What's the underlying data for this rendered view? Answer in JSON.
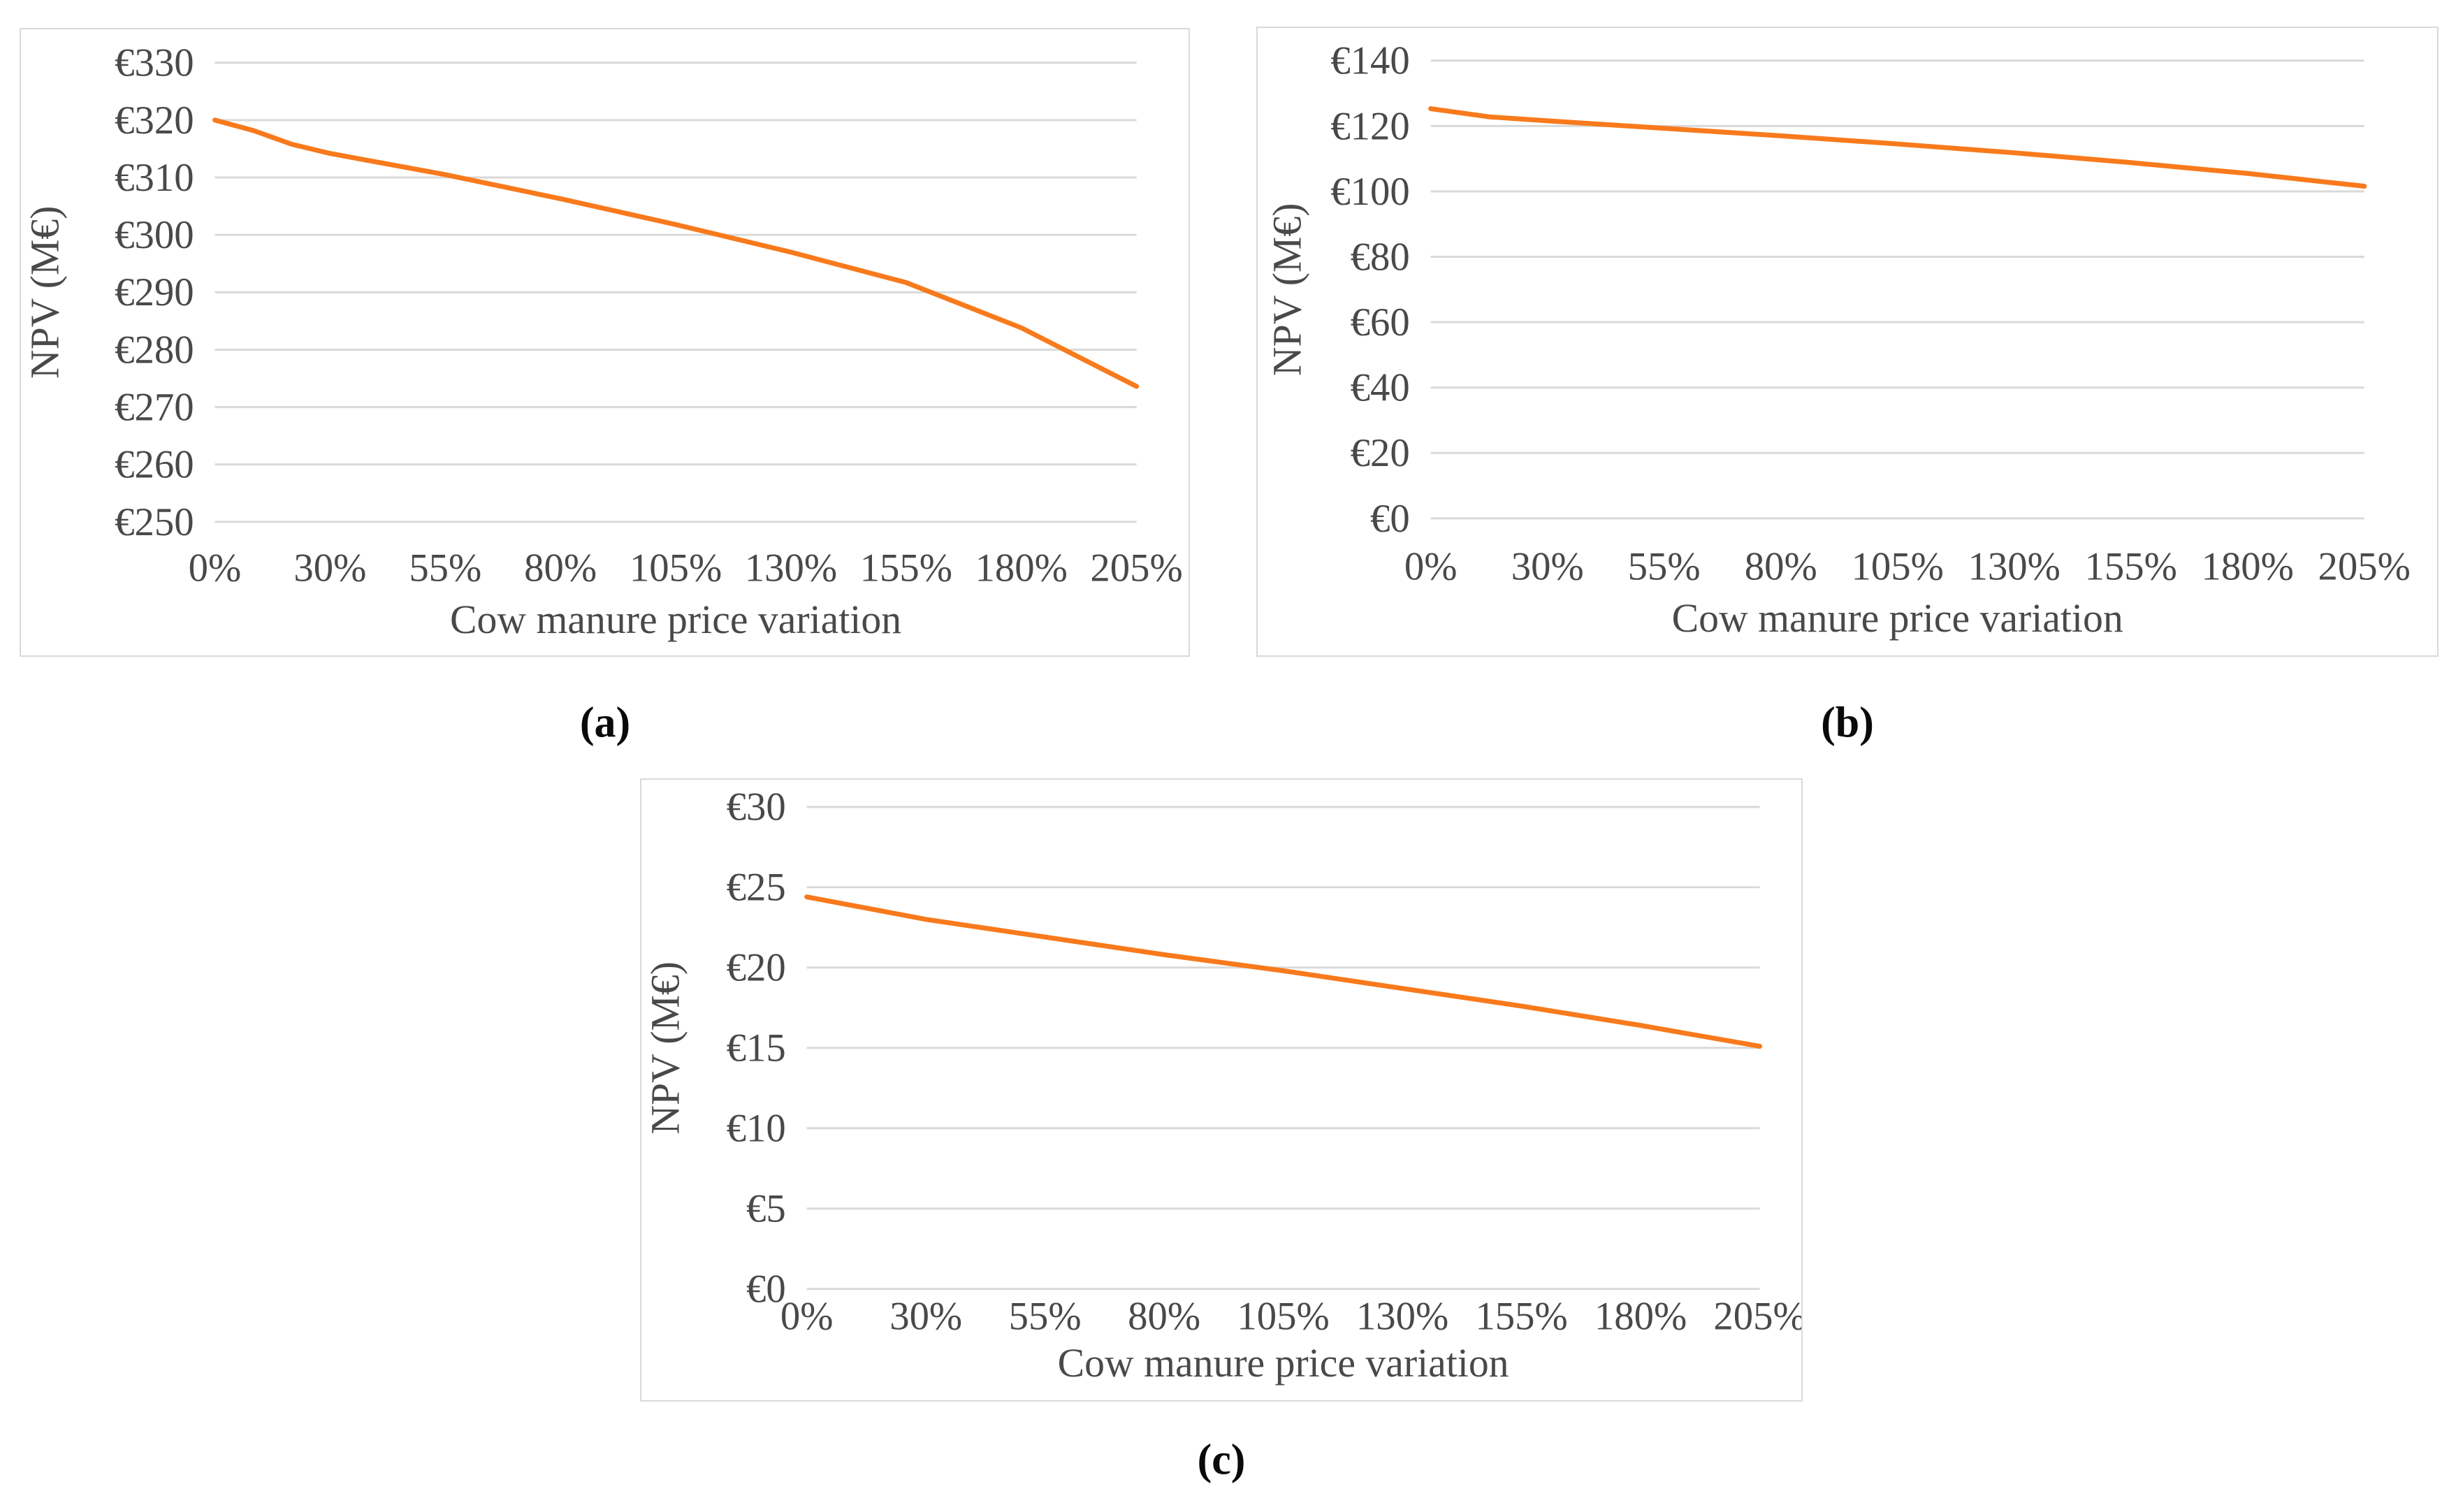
{
  "figure": {
    "captions": {
      "a": "(a)",
      "b": "(b)",
      "c": "(c)"
    }
  },
  "colors": {
    "line": "#f87a1c",
    "gridline": "#d9d9d9",
    "panel_border": "#d9d9d9",
    "axis_text": "#494949",
    "caption_text": "#0a0a0a"
  },
  "chart_data": [
    {
      "id": "a",
      "type": "line",
      "title": "",
      "xlabel": "Cow manure price variation",
      "ylabel": "NPV (M€)",
      "x_tick_labels": [
        "0%",
        "30%",
        "55%",
        "80%",
        "105%",
        "130%",
        "155%",
        "180%",
        "205%"
      ],
      "y_tick_labels": [
        "€330",
        "€320",
        "€310",
        "€300",
        "€290",
        "€280",
        "€270",
        "€260",
        "€250"
      ],
      "ylim": [
        250,
        330
      ],
      "grid": true,
      "legend": "none",
      "series": [
        {
          "name": "NPV",
          "color": "#f87a1c",
          "points": [
            [
              0,
              320
            ],
            [
              10,
              318.2
            ],
            [
              20,
              315.8
            ],
            [
              30,
              314.2
            ],
            [
              55,
              310.5
            ],
            [
              80,
              306.3
            ],
            [
              105,
              301.8
            ],
            [
              130,
              297.0
            ],
            [
              155,
              291.7
            ],
            [
              180,
              283.8
            ],
            [
              205,
              273.6
            ]
          ]
        }
      ]
    },
    {
      "id": "b",
      "type": "line",
      "title": "",
      "xlabel": "Cow manure price variation",
      "ylabel": "NPV (M€)",
      "x_tick_labels": [
        "0%",
        "30%",
        "55%",
        "80%",
        "105%",
        "130%",
        "155%",
        "180%",
        "205%"
      ],
      "y_tick_labels": [
        "€140",
        "€120",
        "€100",
        "€80",
        "€60",
        "€40",
        "€20",
        "€0"
      ],
      "ylim": [
        0,
        140
      ],
      "grid": true,
      "legend": "none",
      "series": [
        {
          "name": "NPV",
          "color": "#f87a1c",
          "points": [
            [
              0,
              125.3
            ],
            [
              15,
              122.8
            ],
            [
              30,
              121.6
            ],
            [
              55,
              119.3
            ],
            [
              80,
              117.0
            ],
            [
              105,
              114.5
            ],
            [
              130,
              111.8
            ],
            [
              155,
              108.8
            ],
            [
              180,
              105.5
            ],
            [
              205,
              101.6
            ]
          ]
        }
      ]
    },
    {
      "id": "c",
      "type": "line",
      "title": "",
      "xlabel": "Cow manure price variation",
      "ylabel": "NPV (M€)",
      "x_tick_labels": [
        "0%",
        "30%",
        "55%",
        "80%",
        "105%",
        "130%",
        "155%",
        "180%",
        "205%"
      ],
      "y_tick_labels": [
        "€30",
        "€25",
        "€20",
        "€15",
        "€10",
        "€5",
        "€0"
      ],
      "ylim": [
        0,
        30
      ],
      "grid": true,
      "legend": "none",
      "series": [
        {
          "name": "NPV",
          "color": "#f87a1c",
          "points": [
            [
              0,
              24.4
            ],
            [
              15,
              23.7
            ],
            [
              30,
              23.0
            ],
            [
              55,
              21.9
            ],
            [
              80,
              20.8
            ],
            [
              105,
              19.8
            ],
            [
              130,
              18.7
            ],
            [
              155,
              17.6
            ],
            [
              180,
              16.4
            ],
            [
              205,
              15.1
            ]
          ]
        }
      ]
    }
  ]
}
